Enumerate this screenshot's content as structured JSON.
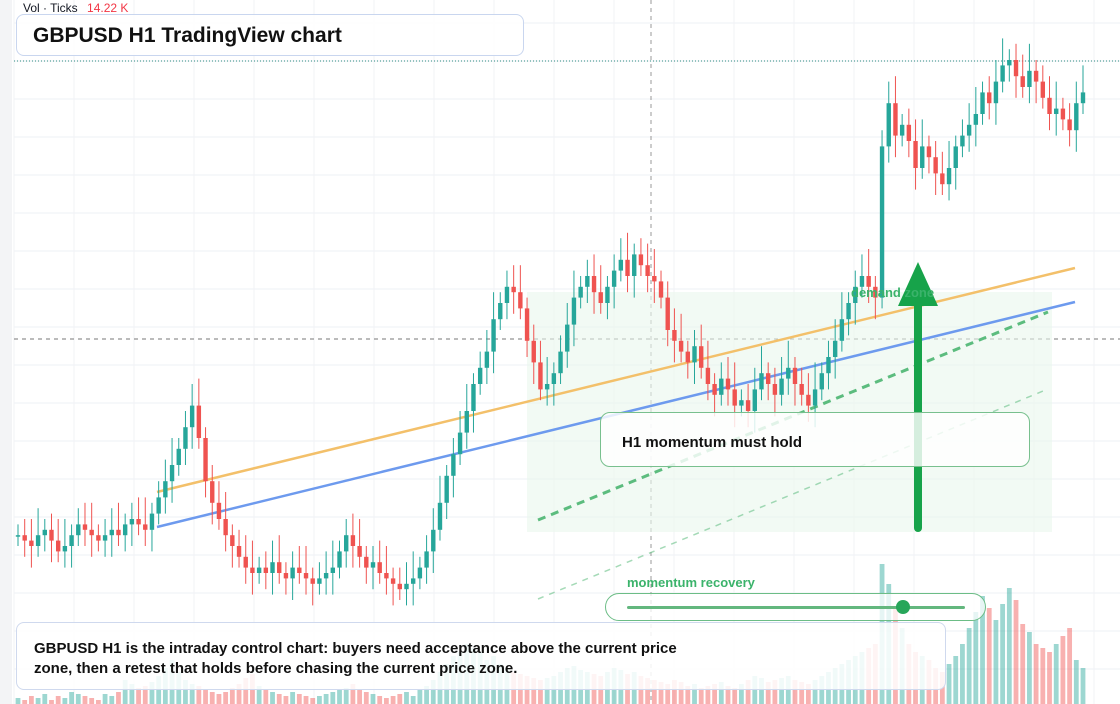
{
  "header": {
    "volume_label": "Vol · Ticks",
    "volume_value": "14.22 K",
    "title": "GBPUSD H1 TradingView chart"
  },
  "annotations": {
    "zone_label": "demand zone",
    "momentum_box": "H1 momentum must hold",
    "momentum_recovery_label": "momentum recovery",
    "momentum_recovery_level": 0.88,
    "note": "GBPUSD H1 is the intraday control chart: buyers need acceptance above the current price zone, then a retest that holds before chasing the current price zone."
  },
  "colors": {
    "up": "#26a69a",
    "down": "#ef5350",
    "support": "#6d9aee",
    "resistance": "#f3c06a",
    "channel": "#5cbc7e",
    "arrow": "#17a34a"
  },
  "chart_data": {
    "type": "candlestick",
    "ylim": [
      0,
      100
    ],
    "series_close": [
      12,
      11,
      10,
      12,
      13,
      11,
      9,
      10,
      12,
      14,
      13,
      12,
      11,
      12,
      13,
      12,
      14,
      15,
      14,
      13,
      16,
      19,
      22,
      25,
      28,
      32,
      36,
      30,
      22,
      18,
      15,
      12,
      10,
      8,
      6,
      5,
      6,
      5,
      7,
      5,
      4,
      6,
      5,
      4,
      3,
      4,
      5,
      6,
      9,
      12,
      10,
      8,
      6,
      7,
      5,
      4,
      3,
      2,
      3,
      4,
      6,
      9,
      13,
      18,
      23,
      27,
      31,
      35,
      40,
      43,
      46,
      52,
      55,
      58,
      57,
      54,
      48,
      44,
      39,
      40,
      42,
      46,
      51,
      56,
      58,
      60,
      57,
      55,
      58,
      61,
      63,
      60,
      64,
      62,
      60,
      59,
      56,
      50,
      48,
      46,
      44,
      47,
      43,
      40,
      38,
      41,
      39,
      36,
      37,
      35,
      39,
      42,
      40,
      38,
      41,
      43,
      40,
      38,
      36,
      39,
      42,
      45,
      48,
      52,
      55,
      58,
      60,
      58,
      56,
      84,
      92,
      86,
      88,
      85,
      80,
      84,
      82,
      79,
      77,
      80,
      84,
      86,
      88,
      90,
      94,
      92,
      96,
      99,
      100,
      97,
      95,
      98,
      96,
      93,
      90,
      91,
      89,
      87,
      92,
      94
    ],
    "volume": [
      3,
      2,
      4,
      3,
      5,
      2,
      4,
      3,
      6,
      5,
      4,
      3,
      2,
      5,
      4,
      6,
      12,
      10,
      8,
      9,
      11,
      14,
      18,
      22,
      16,
      12,
      10,
      9,
      7,
      6,
      5,
      6,
      8,
      10,
      13,
      15,
      9,
      7,
      6,
      5,
      4,
      6,
      5,
      4,
      3,
      4,
      5,
      6,
      7,
      8,
      10,
      7,
      6,
      5,
      4,
      3,
      4,
      5,
      6,
      4,
      7,
      9,
      12,
      16,
      20,
      24,
      26,
      30,
      28,
      26,
      22,
      24,
      20,
      18,
      16,
      15,
      14,
      13,
      12,
      13,
      14,
      16,
      18,
      19,
      17,
      16,
      15,
      14,
      16,
      18,
      17,
      15,
      16,
      14,
      13,
      12,
      11,
      10,
      12,
      11,
      9,
      10,
      8,
      9,
      10,
      11,
      9,
      8,
      10,
      12,
      14,
      13,
      11,
      12,
      13,
      14,
      12,
      11,
      10,
      12,
      14,
      16,
      18,
      20,
      22,
      24,
      26,
      28,
      30,
      70,
      60,
      48,
      38,
      30,
      26,
      24,
      22,
      18,
      16,
      20,
      24,
      30,
      38,
      46,
      54,
      48,
      42,
      50,
      58,
      52,
      40,
      36,
      30,
      28,
      26,
      30,
      34,
      38,
      22,
      18
    ]
  }
}
